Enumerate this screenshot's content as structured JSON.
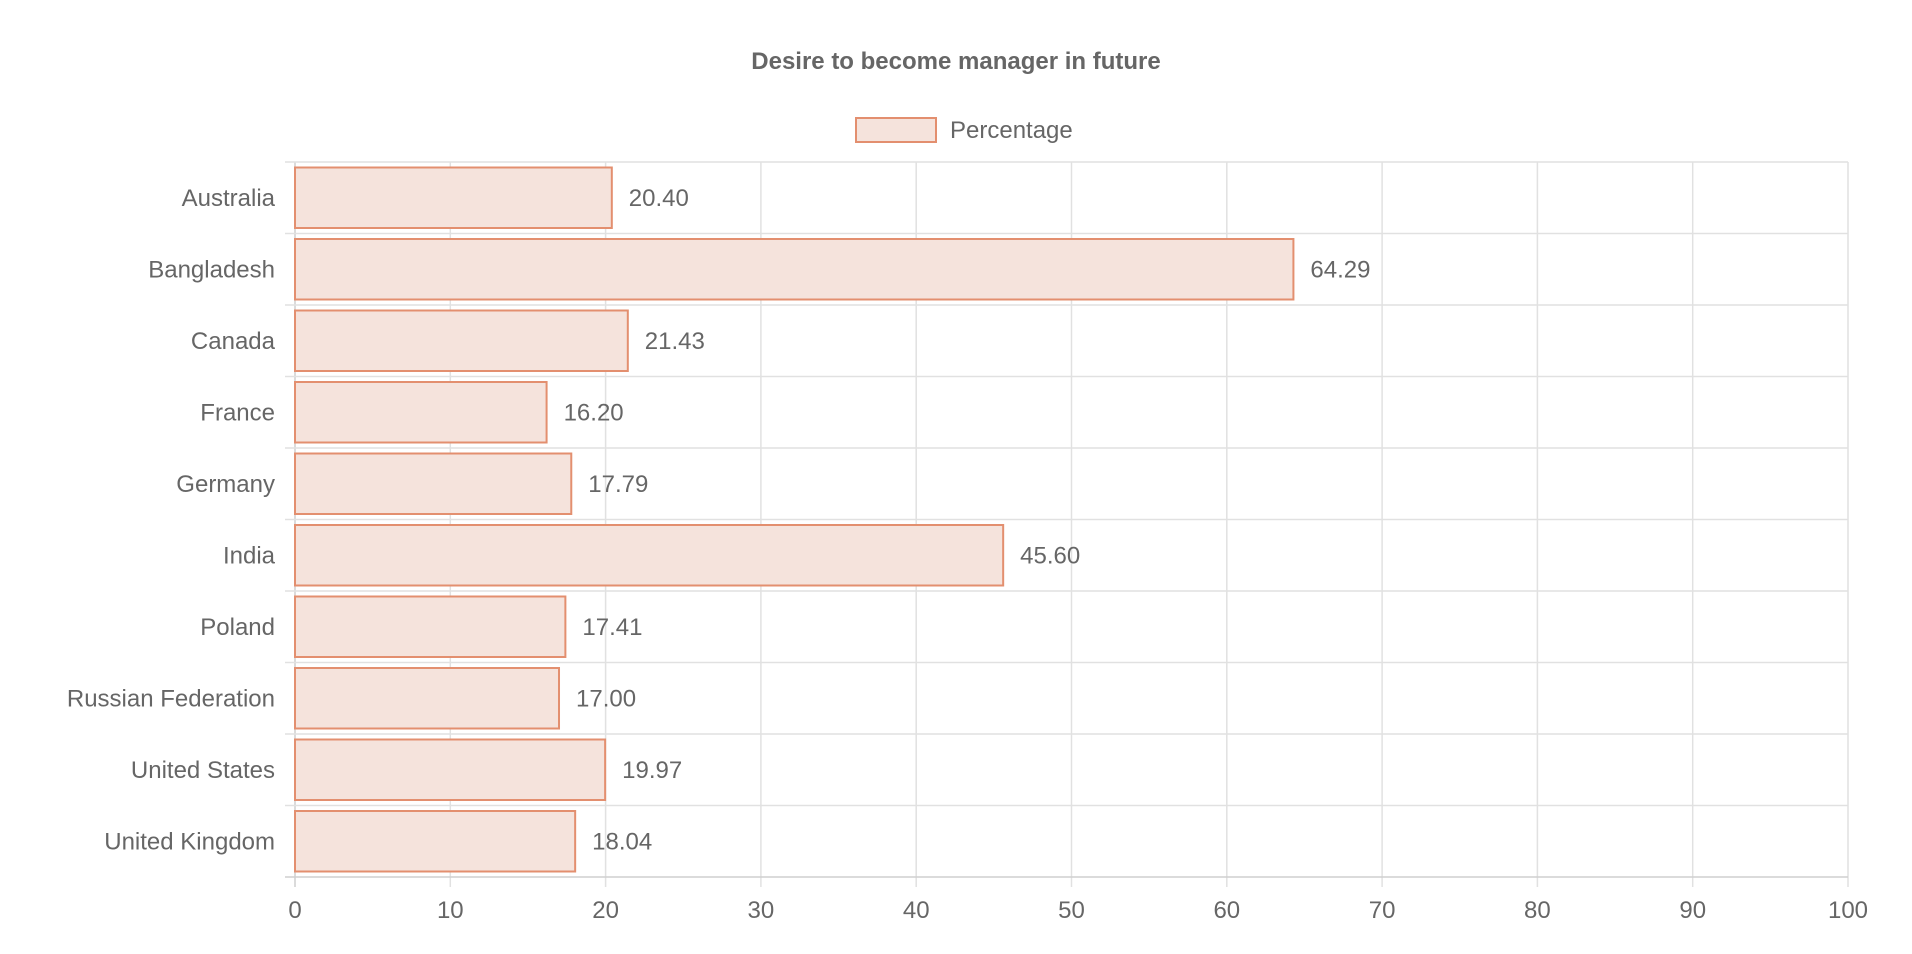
{
  "chart_data": {
    "type": "bar",
    "orientation": "horizontal",
    "title": "Desire to become manager in future",
    "categories": [
      "Australia",
      "Bangladesh",
      "Canada",
      "France",
      "Germany",
      "India",
      "Poland",
      "Russian Federation",
      "United States",
      "United Kingdom"
    ],
    "series": [
      {
        "name": "Percentage",
        "values": [
          20.4,
          64.29,
          21.43,
          16.2,
          17.79,
          45.6,
          17.41,
          17.0,
          19.97,
          18.04
        ],
        "labels": [
          "20.40",
          "64.29",
          "21.43",
          "16.20",
          "17.79",
          "45.60",
          "17.41",
          "17.00",
          "19.97",
          "18.04"
        ],
        "fill_color": "#f5e3dc",
        "border_color": "#e38f6f"
      }
    ],
    "xlim": [
      0,
      100
    ],
    "x_ticks": [
      0,
      10,
      20,
      30,
      40,
      50,
      60,
      70,
      80,
      90,
      100
    ],
    "xlabel": "",
    "ylabel": "",
    "grid": true,
    "legend_position": "top"
  }
}
